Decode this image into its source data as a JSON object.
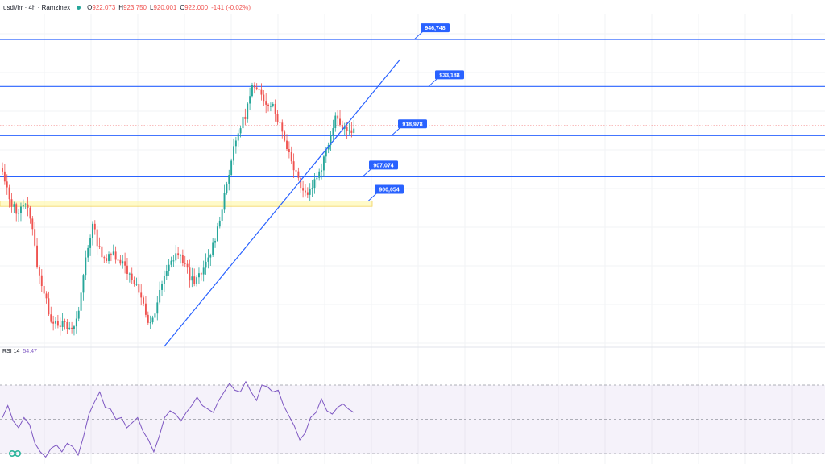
{
  "header": {
    "symbol": "usdt/irr · 4h · Ramzinex",
    "open_label": "O",
    "open": "922,073",
    "high_label": "H",
    "high": "923,750",
    "low_label": "L",
    "low": "920,001",
    "close_label": "C",
    "close": "922,000",
    "change": "-141 (-0.02%)"
  },
  "rsi": {
    "label": "RSI 14",
    "value": "54.47"
  },
  "colors": {
    "up": "#26a69a",
    "down": "#ef5350",
    "level": "#2962ff",
    "rsi": "#7e57c2",
    "zone": "#fff59d"
  },
  "icons": {
    "logo": "tradingview-logo-icon"
  },
  "chart_data": [
    {
      "type": "candlestick",
      "title": "",
      "price_levels": [
        {
          "value": 946748,
          "label": "946,748"
        },
        {
          "value": 933188,
          "label": "933,188"
        },
        {
          "value": 918978,
          "label": "918,978"
        },
        {
          "value": 907074,
          "label": "907,074"
        },
        {
          "value": 900054,
          "label": "900,054"
        }
      ],
      "support_zone": [
        898500,
        900054
      ],
      "ylim": [
        858000,
        954000
      ],
      "last_price": 922000,
      "grid": true,
      "anchors": [
        [
          0,
          908000
        ],
        [
          3,
          900500
        ],
        [
          6,
          897000
        ],
        [
          9,
          899500
        ],
        [
          12,
          896000
        ],
        [
          15,
          882000
        ],
        [
          18,
          873000
        ],
        [
          21,
          866000
        ],
        [
          24,
          865000
        ],
        [
          27,
          864000
        ],
        [
          30,
          862000
        ],
        [
          33,
          868000
        ],
        [
          36,
          884000
        ],
        [
          39,
          893000
        ],
        [
          42,
          886000
        ],
        [
          45,
          883000
        ],
        [
          48,
          885000
        ],
        [
          51,
          883000
        ],
        [
          54,
          880000
        ],
        [
          57,
          877000
        ],
        [
          60,
          872000
        ],
        [
          63,
          864000
        ],
        [
          66,
          868000
        ],
        [
          69,
          876000
        ],
        [
          72,
          881000
        ],
        [
          75,
          885000
        ],
        [
          78,
          883000
        ],
        [
          81,
          878000
        ],
        [
          84,
          877000
        ],
        [
          87,
          880000
        ],
        [
          90,
          885000
        ],
        [
          93,
          892000
        ],
        [
          96,
          902000
        ],
        [
          99,
          912000
        ],
        [
          102,
          920000
        ],
        [
          105,
          925000
        ],
        [
          108,
          933000
        ],
        [
          111,
          931000
        ],
        [
          114,
          929000
        ],
        [
          117,
          928000
        ],
        [
          120,
          922000
        ],
        [
          123,
          916000
        ],
        [
          126,
          910000
        ],
        [
          129,
          905000
        ],
        [
          132,
          902000
        ],
        [
          135,
          906000
        ],
        [
          138,
          910000
        ],
        [
          141,
          917000
        ],
        [
          144,
          925000
        ],
        [
          147,
          922000
        ],
        [
          150,
          920000
        ],
        [
          152,
          922000
        ]
      ],
      "trendline": {
        "start": [
          70,
          858000
        ],
        "end": [
          172,
          941000
        ]
      },
      "rsi_series": [
        51,
        58,
        49,
        45,
        51,
        47,
        36,
        31,
        28,
        33,
        35,
        31,
        36,
        34,
        29,
        40,
        53,
        60,
        66,
        57,
        56,
        50,
        51,
        45,
        48,
        51,
        43,
        38,
        31,
        40,
        51,
        55,
        53,
        49,
        54,
        58,
        63,
        58,
        56,
        54,
        61,
        66,
        71,
        67,
        66,
        72,
        66,
        61,
        70,
        69,
        66,
        67,
        58,
        52,
        46,
        38,
        42,
        51,
        54,
        62,
        55,
        53,
        57,
        59,
        56,
        54
      ],
      "rsi_levels": [
        70,
        50,
        30
      ]
    }
  ]
}
